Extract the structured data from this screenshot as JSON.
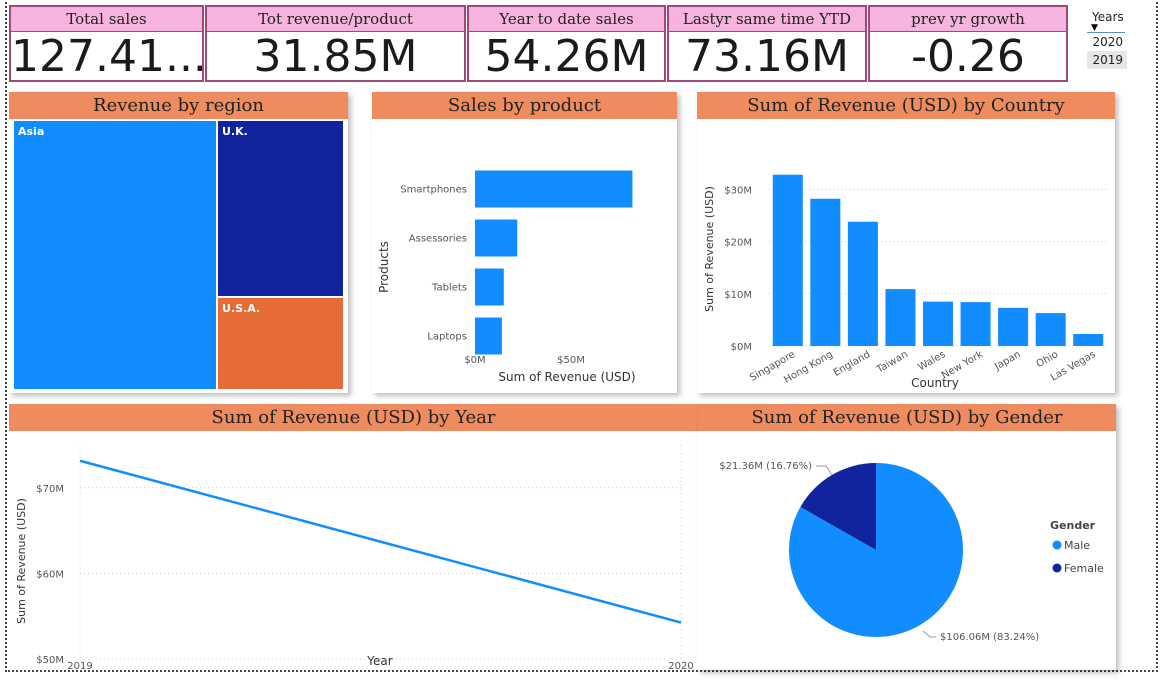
{
  "kpis": [
    {
      "title": "Total sales",
      "value": "127.41..."
    },
    {
      "title": "Tot revenue/product",
      "value": "31.85M"
    },
    {
      "title": "Year to date sales",
      "value": "54.26M"
    },
    {
      "title": "Lastyr same time YTD",
      "value": "73.16M"
    },
    {
      "title": "prev yr growth",
      "value": "-0.26"
    }
  ],
  "slicer": {
    "title": "Years",
    "items": [
      "2020",
      "2019"
    ],
    "selected": "2019"
  },
  "colors": {
    "accent_blue": "#118dff",
    "dark_blue": "#12239e",
    "orange": "#e66c37",
    "header": "#ee8c5f",
    "kpi_header": "#f5b3de"
  },
  "treemap": {
    "title": "Revenue by region",
    "items": [
      {
        "label": "Asia",
        "color": "#118dff"
      },
      {
        "label": "U.K.",
        "color": "#12239e"
      },
      {
        "label": "U.S.A.",
        "color": "#e66c37"
      }
    ]
  },
  "chart_data": [
    {
      "type": "bar",
      "orientation": "horizontal",
      "title": "Sales by product",
      "categories": [
        "Smartphones",
        "Assessories",
        "Tablets",
        "Laptops"
      ],
      "values": [
        82,
        22,
        15,
        14
      ],
      "xlabel": "Sum of Revenue (USD)",
      "ylabel": "Products",
      "xticks": [
        "$0M",
        "$50M"
      ],
      "xlim": [
        0,
        100
      ]
    },
    {
      "type": "bar",
      "title": "Sum of Revenue (USD) by Country",
      "categories": [
        "Singapore",
        "Hong Kong",
        "England",
        "Taiwan",
        "Wales",
        "New York",
        "Japan",
        "Ohio",
        "Las Vegas"
      ],
      "values": [
        32.8,
        28.2,
        23.8,
        10.9,
        8.5,
        8.4,
        7.3,
        6.3,
        2.3
      ],
      "xlabel": "Country",
      "ylabel": "Sum of Revenue (USD)",
      "yticks": [
        "$0M",
        "$10M",
        "$20M",
        "$30M"
      ],
      "ylim": [
        0,
        36
      ]
    },
    {
      "type": "line",
      "title": "Sum of Revenue (USD) by Year",
      "x": [
        "2019",
        "2020"
      ],
      "values": [
        73.16,
        54.26
      ],
      "xlabel": "Year",
      "ylabel": "Sum of Revenue (USD)",
      "yticks": [
        "$50M",
        "$60M",
        "$70M"
      ],
      "ylim": [
        50,
        75
      ]
    },
    {
      "type": "pie",
      "title": "Sum of Revenue (USD) by Gender",
      "legend_title": "Gender",
      "series": [
        {
          "name": "Male",
          "value": 106.06,
          "label": "$106.06M (83.24%)",
          "color": "#118dff"
        },
        {
          "name": "Female",
          "value": 21.36,
          "label": "$21.36M (16.76%)",
          "color": "#12239e"
        }
      ],
      "legend": "right"
    }
  ]
}
